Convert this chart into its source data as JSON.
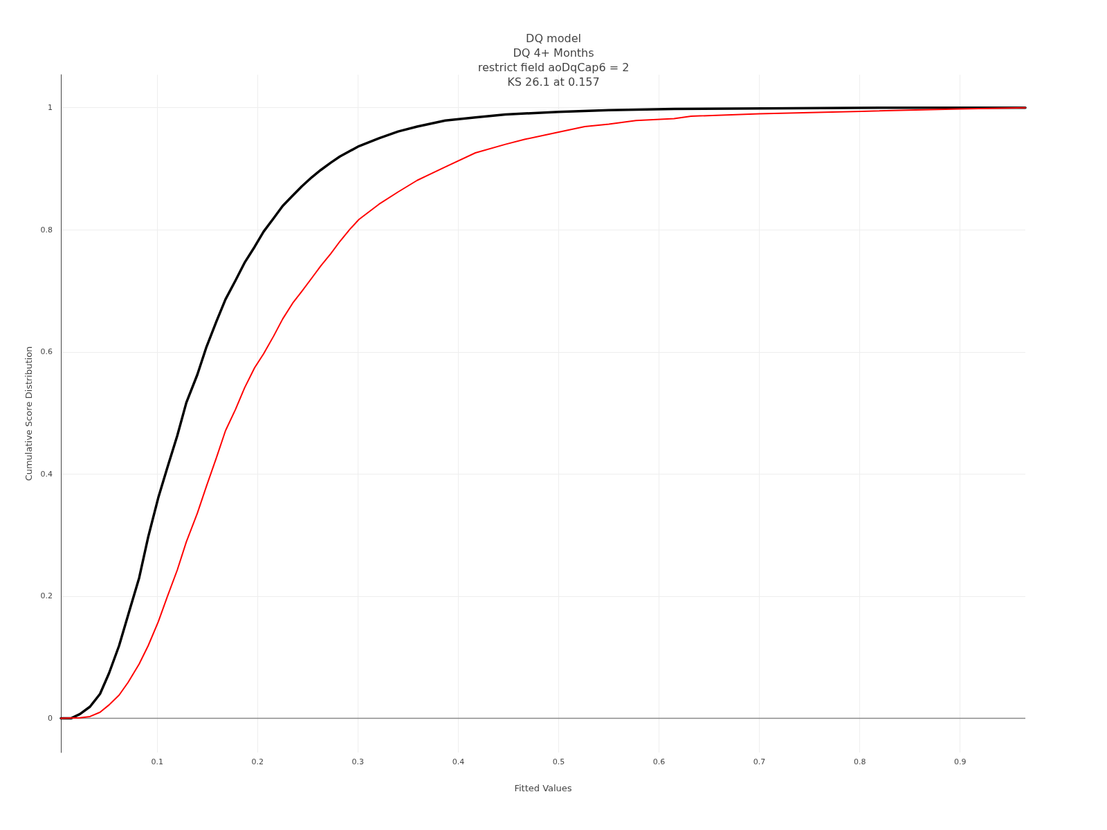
{
  "chart_data": {
    "type": "line",
    "title": "DQ model\nDQ 4+ Months\nrestrict field aoDqCap6 = 2\nKS 26.1 at 0.157",
    "xlabel": "Fitted Values",
    "ylabel": "Cumulative Score Distribution",
    "xlim": [
      0.004,
      0.965
    ],
    "ylim": [
      -0.056,
      1.054
    ],
    "xticks": [
      0.1,
      0.2,
      0.3,
      0.4,
      0.5,
      0.6,
      0.7,
      0.8,
      0.9
    ],
    "yticks": [
      0,
      0.2,
      0.4,
      0.6,
      0.8,
      1
    ],
    "grid": true,
    "marker": "none",
    "line_style": "solid",
    "series": [
      {
        "color": "#000000",
        "x": [
          0.004,
          0.014,
          0.023,
          0.033,
          0.043,
          0.052,
          0.062,
          0.071,
          0.082,
          0.091,
          0.101,
          0.11,
          0.12,
          0.129,
          0.14,
          0.149,
          0.159,
          0.168,
          0.178,
          0.187,
          0.197,
          0.206,
          0.216,
          0.225,
          0.235,
          0.244,
          0.254,
          0.263,
          0.273,
          0.282,
          0.301,
          0.321,
          0.34,
          0.359,
          0.387,
          0.417,
          0.447,
          0.5,
          0.55,
          0.615,
          0.734,
          0.836,
          0.965
        ],
        "values": [
          0,
          0,
          0.007,
          0.019,
          0.04,
          0.074,
          0.119,
          0.169,
          0.23,
          0.297,
          0.361,
          0.41,
          0.463,
          0.517,
          0.563,
          0.608,
          0.65,
          0.686,
          0.717,
          0.746,
          0.772,
          0.797,
          0.819,
          0.839,
          0.856,
          0.871,
          0.886,
          0.898,
          0.91,
          0.92,
          0.937,
          0.95,
          0.961,
          0.969,
          0.979,
          0.984,
          0.989,
          0.993,
          0.996,
          0.998,
          0.999,
          1,
          1
        ]
      },
      {
        "color": "#ff0000",
        "x": [
          0.004,
          0.023,
          0.033,
          0.043,
          0.052,
          0.062,
          0.071,
          0.082,
          0.091,
          0.101,
          0.11,
          0.12,
          0.129,
          0.14,
          0.149,
          0.159,
          0.168,
          0.178,
          0.187,
          0.197,
          0.206,
          0.216,
          0.225,
          0.235,
          0.244,
          0.254,
          0.263,
          0.273,
          0.282,
          0.292,
          0.301,
          0.321,
          0.34,
          0.359,
          0.387,
          0.417,
          0.447,
          0.466,
          0.5,
          0.526,
          0.55,
          0.577,
          0.615,
          0.632,
          0.7,
          0.802,
          0.9,
          0.965
        ],
        "values": [
          0,
          0.001,
          0.003,
          0.01,
          0.022,
          0.038,
          0.059,
          0.089,
          0.119,
          0.158,
          0.199,
          0.243,
          0.289,
          0.336,
          0.38,
          0.427,
          0.471,
          0.506,
          0.541,
          0.574,
          0.597,
          0.626,
          0.654,
          0.68,
          0.699,
          0.721,
          0.741,
          0.761,
          0.781,
          0.801,
          0.817,
          0.842,
          0.862,
          0.881,
          0.903,
          0.926,
          0.94,
          0.948,
          0.96,
          0.969,
          0.973,
          0.979,
          0.982,
          0.986,
          0.99,
          0.994,
          0.998,
          1
        ]
      }
    ]
  }
}
